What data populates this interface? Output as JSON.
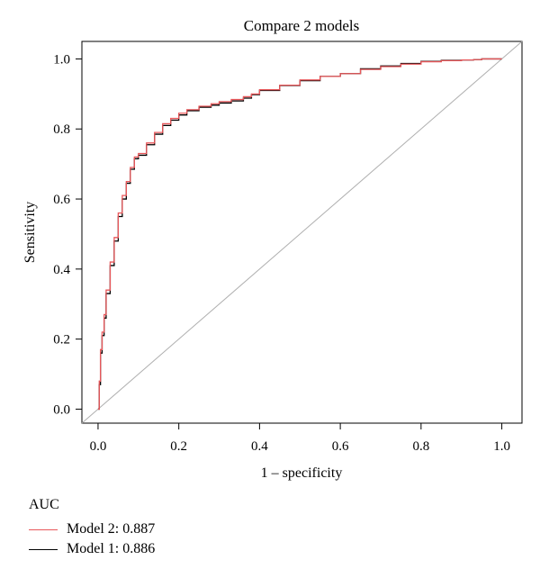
{
  "chart_data": {
    "type": "line",
    "title": "Compare 2 models",
    "xlabel": "1 – specificity",
    "ylabel": "Sensitivity",
    "xlim": [
      -0.04,
      1.05
    ],
    "ylim": [
      -0.04,
      1.05
    ],
    "xticks": [
      "0.0",
      "0.2",
      "0.4",
      "0.6",
      "0.8",
      "1.0"
    ],
    "yticks": [
      "0.0",
      "0.2",
      "0.4",
      "0.6",
      "0.8",
      "1.0"
    ],
    "grid": false,
    "legend_title": "AUC",
    "legend_position": "bottom-left",
    "reference_line": {
      "from": [
        0,
        0
      ],
      "to": [
        1,
        1
      ],
      "color": "#b0b0b0"
    },
    "series": [
      {
        "name": "Model 2: 0.887",
        "color": "#e8575a",
        "x": [
          0,
          0.003,
          0.006,
          0.01,
          0.015,
          0.02,
          0.03,
          0.04,
          0.05,
          0.06,
          0.07,
          0.08,
          0.09,
          0.1,
          0.12,
          0.14,
          0.16,
          0.18,
          0.2,
          0.22,
          0.25,
          0.28,
          0.3,
          0.33,
          0.36,
          0.38,
          0.4,
          0.45,
          0.5,
          0.55,
          0.6,
          0.65,
          0.7,
          0.75,
          0.8,
          0.85,
          0.9,
          0.93,
          0.95,
          1.0
        ],
        "y": [
          0,
          0.08,
          0.17,
          0.22,
          0.27,
          0.34,
          0.42,
          0.49,
          0.56,
          0.61,
          0.65,
          0.69,
          0.72,
          0.73,
          0.76,
          0.79,
          0.815,
          0.83,
          0.845,
          0.855,
          0.865,
          0.872,
          0.878,
          0.884,
          0.892,
          0.9,
          0.912,
          0.925,
          0.94,
          0.95,
          0.958,
          0.97,
          0.978,
          0.985,
          0.992,
          0.995,
          0.997,
          0.998,
          1.0,
          1.0
        ]
      },
      {
        "name": "Model 1: 0.886",
        "color": "#000000",
        "x": [
          0,
          0.003,
          0.006,
          0.01,
          0.015,
          0.02,
          0.03,
          0.04,
          0.05,
          0.06,
          0.07,
          0.08,
          0.09,
          0.1,
          0.12,
          0.14,
          0.16,
          0.18,
          0.2,
          0.22,
          0.25,
          0.28,
          0.3,
          0.33,
          0.36,
          0.38,
          0.4,
          0.45,
          0.5,
          0.55,
          0.6,
          0.65,
          0.7,
          0.75,
          0.8,
          0.85,
          0.9,
          0.93,
          0.95,
          1.0
        ],
        "y": [
          0,
          0.07,
          0.16,
          0.21,
          0.26,
          0.33,
          0.41,
          0.48,
          0.55,
          0.6,
          0.645,
          0.685,
          0.715,
          0.725,
          0.755,
          0.785,
          0.81,
          0.825,
          0.84,
          0.852,
          0.862,
          0.868,
          0.874,
          0.88,
          0.888,
          0.898,
          0.91,
          0.924,
          0.938,
          0.95,
          0.958,
          0.972,
          0.98,
          0.987,
          0.993,
          0.996,
          0.997,
          0.998,
          1.0,
          1.0
        ]
      }
    ]
  }
}
